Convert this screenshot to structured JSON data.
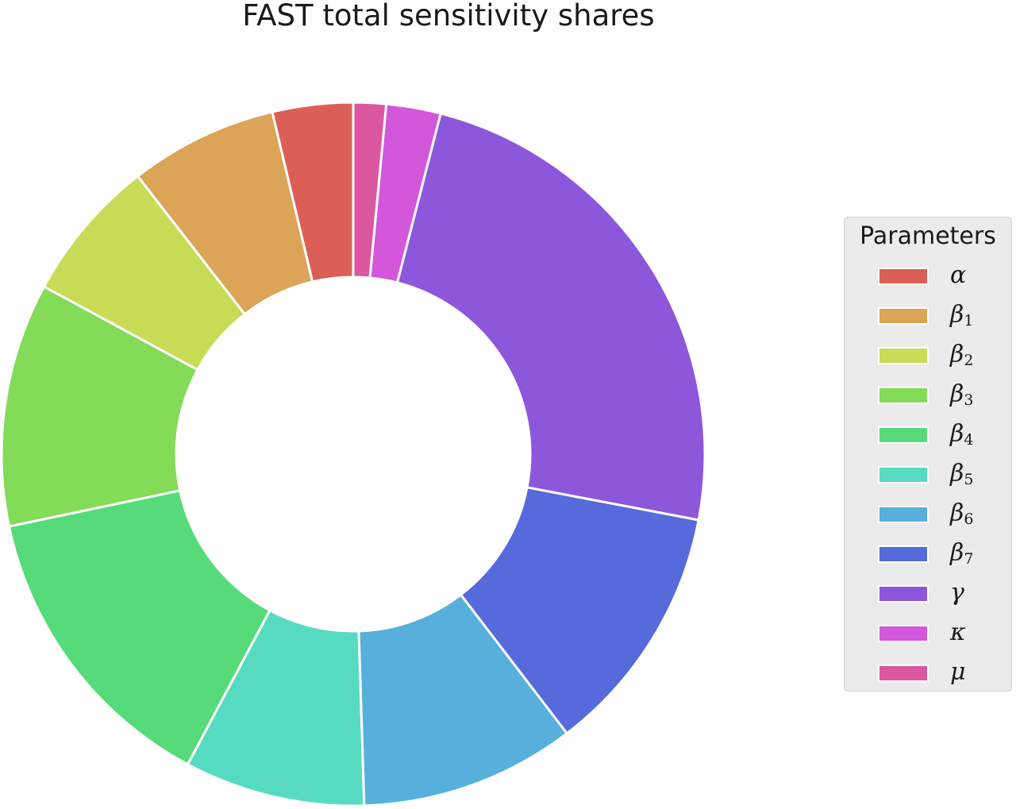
{
  "chart_data": {
    "type": "pie",
    "title": "FAST total sensitivity shares",
    "legend": {
      "title": "Parameters",
      "position": "right"
    },
    "donut": true,
    "start_angle_deg": 90,
    "direction": "counterclockwise",
    "slices": [
      {
        "label": "α",
        "base": "α",
        "sub": "",
        "value": 0.037,
        "color": "#db5f57"
      },
      {
        "label": "β1",
        "base": "β",
        "sub": "1",
        "value": 0.068,
        "color": "#dba457"
      },
      {
        "label": "β2",
        "base": "β",
        "sub": "2",
        "value": 0.066,
        "color": "#c8db57"
      },
      {
        "label": "β3",
        "base": "β",
        "sub": "3",
        "value": 0.112,
        "color": "#83db57"
      },
      {
        "label": "β4",
        "base": "β",
        "sub": "4",
        "value": 0.139,
        "color": "#57db7a"
      },
      {
        "label": "β5",
        "base": "β",
        "sub": "5",
        "value": 0.083,
        "color": "#57dbc0"
      },
      {
        "label": "β6",
        "base": "β",
        "sub": "6",
        "value": 0.099,
        "color": "#57b0db"
      },
      {
        "label": "β7",
        "base": "β",
        "sub": "7",
        "value": 0.116,
        "color": "#576adb"
      },
      {
        "label": "γ",
        "base": "γ",
        "sub": "",
        "value": 0.24,
        "color": "#8d57db"
      },
      {
        "label": "κ",
        "base": "κ",
        "sub": "",
        "value": 0.025,
        "color": "#d357db"
      },
      {
        "label": "μ",
        "base": "μ",
        "sub": "",
        "value": 0.015,
        "color": "#db579e"
      }
    ]
  }
}
